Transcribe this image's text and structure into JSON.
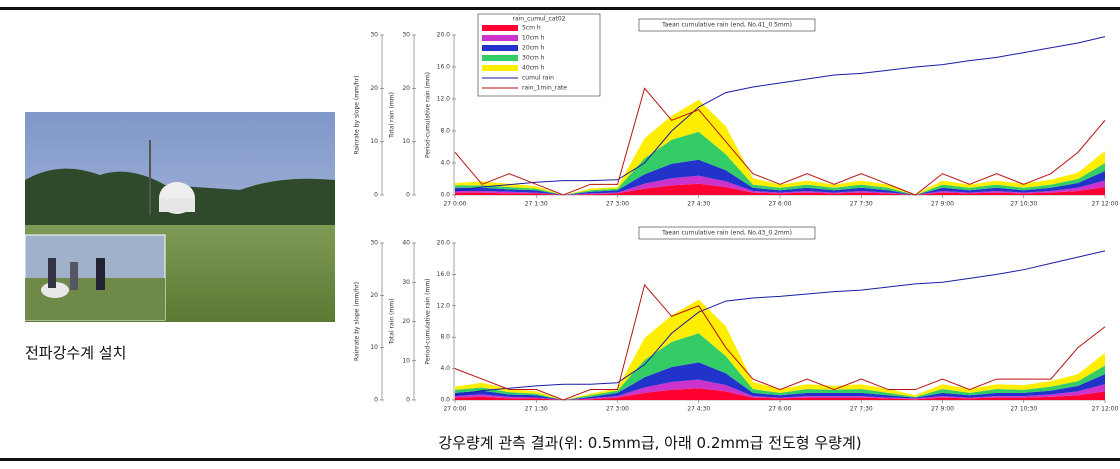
{
  "photo_caption": "전파강수계 설치",
  "figure_caption": "강우량계 관측 결과(위: 0.5mm급, 아래 0.2mm급 전도형 우량계)",
  "charts": [
    {
      "type": "area",
      "title": "Taean cumulative rain (end, No.41_0.5mm)",
      "ylabel": "Rainrate by slope (mm/hr)",
      "y2label": "Total rain (mm)",
      "y3label": "Period-cumulative rain (mm)",
      "legend": true,
      "legend_title": "rain_cumul_cat02",
      "x": [
        0,
        0.5,
        1,
        1.5,
        2,
        2.5,
        3,
        3.5,
        4,
        4.5,
        5,
        5.5,
        6,
        6.5,
        7,
        7.5,
        8,
        8.5,
        9,
        9.5,
        10,
        10.5,
        11,
        11.5,
        12
      ],
      "xlim": [
        0,
        12
      ],
      "xticks": [
        {
          "value": 0,
          "label": "27 0:00"
        },
        {
          "value": 1.5,
          "label": "27 1:30"
        },
        {
          "value": 3,
          "label": "27 3:00"
        },
        {
          "value": 4.5,
          "label": "27 4:30"
        },
        {
          "value": 6,
          "label": "27 6:00"
        },
        {
          "value": 7.5,
          "label": "27 7:30"
        },
        {
          "value": 9,
          "label": "27 9:00"
        },
        {
          "value": 10.5,
          "label": "27 10:30"
        },
        {
          "value": 12,
          "label": "27 12:00"
        }
      ],
      "ylim": [
        0,
        30
      ],
      "yticks": [
        0,
        10,
        20,
        30
      ],
      "y2lim": [
        0,
        30
      ],
      "y2ticks": [
        0,
        10,
        20,
        30
      ],
      "y3lim": [
        0,
        20
      ],
      "y3ticks": [
        {
          "value": 0,
          "label": "0.0"
        },
        {
          "value": 4,
          "label": "4.0"
        },
        {
          "value": 8,
          "label": "8.0"
        },
        {
          "value": 12,
          "label": "12.0"
        },
        {
          "value": 16,
          "label": "16.0"
        },
        {
          "value": 20,
          "label": "20.0"
        }
      ],
      "series": [
        {
          "name": "5cm h",
          "type": "area",
          "axis": "y3",
          "color": "#ff0033",
          "values": [
            0.3,
            0.3,
            0.2,
            0.2,
            0,
            0.1,
            0.2,
            0.8,
            1.2,
            1.4,
            1.0,
            0.3,
            0.2,
            0.3,
            0.2,
            0.3,
            0.2,
            0,
            0.3,
            0.2,
            0.3,
            0.2,
            0.3,
            0.5,
            1.0
          ]
        },
        {
          "name": "10cm h",
          "type": "area",
          "axis": "y3",
          "color": "#cc33cc",
          "values": [
            0.2,
            0.2,
            0.2,
            0.1,
            0,
            0.1,
            0.1,
            0.6,
            0.9,
            1.0,
            0.7,
            0.2,
            0.1,
            0.2,
            0.1,
            0.2,
            0.1,
            0,
            0.2,
            0.1,
            0.2,
            0.1,
            0.2,
            0.4,
            0.8
          ]
        },
        {
          "name": "20cm h",
          "type": "area",
          "axis": "y3",
          "color": "#2233cc",
          "values": [
            0.4,
            0.4,
            0.3,
            0.3,
            0,
            0.2,
            0.3,
            1.2,
            1.8,
            2.0,
            1.4,
            0.4,
            0.3,
            0.4,
            0.3,
            0.4,
            0.3,
            0,
            0.4,
            0.3,
            0.4,
            0.3,
            0.4,
            0.6,
            1.2
          ]
        },
        {
          "name": "30cm h",
          "type": "area",
          "axis": "y3",
          "color": "#33cc66",
          "values": [
            0.3,
            0.3,
            0.3,
            0.2,
            0,
            0.2,
            0.2,
            2.0,
            3.0,
            3.5,
            2.0,
            0.4,
            0.3,
            0.4,
            0.3,
            0.4,
            0.3,
            0,
            0.4,
            0.3,
            0.4,
            0.3,
            0.4,
            0.5,
            1.0
          ]
        },
        {
          "name": "40cm h",
          "type": "area",
          "axis": "y3",
          "color": "#ffee00",
          "values": [
            0.3,
            0.5,
            0.4,
            0.3,
            0,
            0.2,
            0.2,
            2.5,
            3.0,
            4.0,
            3.5,
            0.8,
            0.4,
            0.5,
            0.4,
            0.5,
            0.4,
            0.1,
            0.5,
            0.4,
            0.5,
            0.5,
            0.6,
            0.8,
            1.5
          ]
        },
        {
          "name": "cumul rain",
          "type": "line",
          "axis": "y3",
          "color": "#1a1aa6",
          "values": [
            0.5,
            1.0,
            1.3,
            1.6,
            1.8,
            1.8,
            1.9,
            4.0,
            8.0,
            11.0,
            12.8,
            13.5,
            14.0,
            14.5,
            15.0,
            15.2,
            15.6,
            16.0,
            16.3,
            16.8,
            17.2,
            17.8,
            18.4,
            19.0,
            19.8
          ]
        },
        {
          "name": "rain_1min_rate",
          "type": "line",
          "axis": "y",
          "color": "#bb1111",
          "values": [
            8,
            2,
            4,
            2,
            0,
            2,
            2,
            20,
            14,
            16,
            10,
            4,
            2,
            4,
            2,
            4,
            2,
            0,
            4,
            2,
            4,
            2,
            4,
            8,
            14
          ]
        }
      ]
    },
    {
      "type": "area",
      "title": "Taean cumulative rain (end, No.43_0.2mm)",
      "ylabel": "Rainrate by slope (mm/hr)",
      "y2label": "Total rain (mm)",
      "y3label": "Period-cumulative rain (mm)",
      "legend": false,
      "x": [
        0,
        0.5,
        1,
        1.5,
        2,
        2.5,
        3,
        3.5,
        4,
        4.5,
        5,
        5.5,
        6,
        6.5,
        7,
        7.5,
        8,
        8.5,
        9,
        9.5,
        10,
        10.5,
        11,
        11.5,
        12
      ],
      "xlim": [
        0,
        12
      ],
      "xticks": [
        {
          "value": 0,
          "label": "27 0:00"
        },
        {
          "value": 1.5,
          "label": "27 1:30"
        },
        {
          "value": 3,
          "label": "27 3:00"
        },
        {
          "value": 4.5,
          "label": "27 4:30"
        },
        {
          "value": 6,
          "label": "27 6:00"
        },
        {
          "value": 7.5,
          "label": "27 7:30"
        },
        {
          "value": 9,
          "label": "27 9:00"
        },
        {
          "value": 10.5,
          "label": "27 10:30"
        },
        {
          "value": 12,
          "label": "27 12:00"
        }
      ],
      "ylim": [
        0,
        30
      ],
      "yticks": [
        0,
        10,
        20,
        30
      ],
      "y2lim": [
        0,
        40
      ],
      "y2ticks": [
        0,
        10,
        20,
        30,
        40
      ],
      "y3lim": [
        0,
        20
      ],
      "y3ticks": [
        {
          "value": 0,
          "label": "0.0"
        },
        {
          "value": 4,
          "label": "4.0"
        },
        {
          "value": 8,
          "label": "8.0"
        },
        {
          "value": 12,
          "label": "12.0"
        },
        {
          "value": 16,
          "label": "16.0"
        },
        {
          "value": 20,
          "label": "20.0"
        }
      ],
      "series": [
        {
          "name": "5cm h",
          "type": "area",
          "axis": "y3",
          "color": "#ff0033",
          "values": [
            0.3,
            0.4,
            0.2,
            0.2,
            0,
            0.1,
            0.3,
            0.9,
            1.3,
            1.5,
            1.1,
            0.3,
            0.2,
            0.3,
            0.3,
            0.3,
            0.2,
            0.1,
            0.3,
            0.2,
            0.3,
            0.3,
            0.4,
            0.6,
            1.1
          ]
        },
        {
          "name": "10cm h",
          "type": "area",
          "axis": "y3",
          "color": "#cc33cc",
          "values": [
            0.2,
            0.3,
            0.2,
            0.1,
            0,
            0.1,
            0.2,
            0.7,
            1.0,
            1.1,
            0.8,
            0.2,
            0.1,
            0.2,
            0.2,
            0.2,
            0.1,
            0.1,
            0.2,
            0.1,
            0.2,
            0.2,
            0.3,
            0.5,
            0.9
          ]
        },
        {
          "name": "20cm h",
          "type": "area",
          "axis": "y3",
          "color": "#2233cc",
          "values": [
            0.4,
            0.5,
            0.3,
            0.3,
            0,
            0.2,
            0.4,
            1.3,
            1.9,
            2.2,
            1.5,
            0.4,
            0.3,
            0.4,
            0.4,
            0.4,
            0.3,
            0.1,
            0.4,
            0.3,
            0.4,
            0.4,
            0.5,
            0.7,
            1.3
          ]
        },
        {
          "name": "30cm h",
          "type": "area",
          "axis": "y3",
          "color": "#33cc66",
          "values": [
            0.4,
            0.4,
            0.3,
            0.2,
            0,
            0.2,
            0.3,
            2.2,
            3.2,
            3.7,
            2.2,
            0.5,
            0.3,
            0.5,
            0.4,
            0.5,
            0.3,
            0.1,
            0.5,
            0.3,
            0.5,
            0.4,
            0.5,
            0.6,
            1.1
          ]
        },
        {
          "name": "40cm h",
          "type": "area",
          "axis": "y3",
          "color": "#ffee00",
          "values": [
            0.4,
            0.6,
            0.4,
            0.3,
            0,
            0.2,
            0.3,
            2.8,
            3.4,
            4.3,
            3.8,
            0.9,
            0.5,
            0.6,
            0.5,
            0.6,
            0.5,
            0.2,
            0.6,
            0.5,
            0.6,
            0.6,
            0.7,
            0.9,
            1.6
          ]
        },
        {
          "name": "cumul rain",
          "type": "line",
          "axis": "y3",
          "color": "#1a1aa6",
          "values": [
            0.6,
            1.2,
            1.5,
            1.8,
            2.0,
            2.0,
            2.2,
            4.5,
            8.5,
            11.2,
            12.6,
            13.0,
            13.2,
            13.5,
            13.8,
            14.0,
            14.4,
            14.8,
            15.0,
            15.5,
            16.0,
            16.6,
            17.4,
            18.2,
            19.0
          ]
        },
        {
          "name": "rain_1min_rate",
          "type": "line",
          "axis": "y",
          "color": "#bb1111",
          "values": [
            6,
            4,
            2,
            2,
            0,
            2,
            2,
            22,
            16,
            18,
            10,
            4,
            2,
            4,
            2,
            4,
            2,
            2,
            4,
            2,
            4,
            4,
            4,
            10,
            14
          ]
        }
      ]
    }
  ]
}
